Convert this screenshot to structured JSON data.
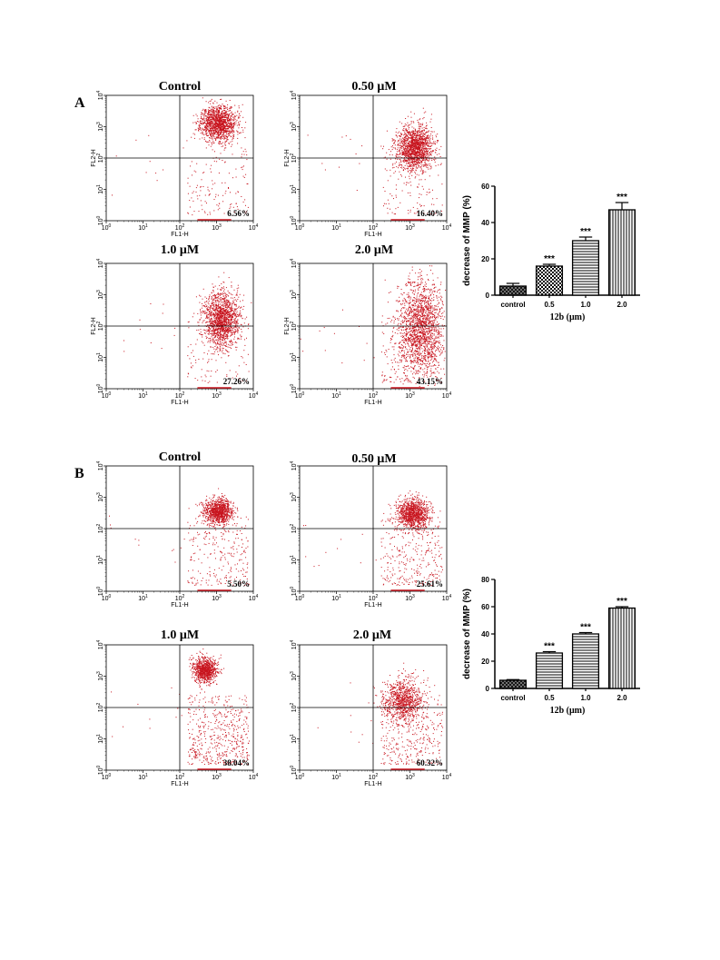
{
  "panels": [
    {
      "label": "A",
      "flow_plots": [
        {
          "title": "Control",
          "percent": "6.56%",
          "dist": "tight-top"
        },
        {
          "title": "0.50 μM",
          "percent": "16.40%",
          "dist": "tight-mid"
        },
        {
          "title": "1.0 μM",
          "percent": "27.26%",
          "dist": "tight-low"
        },
        {
          "title": "2.0 μM",
          "percent": "43.15%",
          "dist": "spread"
        }
      ],
      "flow_axis": {
        "ylabel": "FL2-H",
        "xlabel": "FL1-H"
      },
      "chart_data": {
        "type": "bar",
        "categories": [
          "control",
          "0.5",
          "1.0",
          "2.0"
        ],
        "values": [
          5,
          16,
          30,
          47
        ],
        "errors": [
          1.5,
          1,
          2,
          4
        ],
        "significance": [
          "",
          "***",
          "***",
          "***"
        ],
        "xlabel": "12b (μm)",
        "ylabel": "decrease of MMP (%)",
        "ylim": [
          0,
          60
        ],
        "yticks": [
          "0",
          "20",
          "40",
          "60"
        ],
        "patterns": [
          "crosshatch",
          "checker",
          "horizontal",
          "vertical"
        ]
      }
    },
    {
      "label": "B",
      "flow_plots": [
        {
          "title": "Control",
          "percent": "5.50%",
          "dist": "b-top"
        },
        {
          "title": "0.50 μM",
          "percent": "25.61%",
          "dist": "b-top2"
        },
        {
          "title": "1.0 μM",
          "percent": "38.04%",
          "dist": "b-upper"
        },
        {
          "title": "2.0 μM",
          "percent": "60.32%",
          "dist": "b-mid"
        }
      ],
      "flow_axis": {
        "ylabel": "",
        "xlabel": "FL1-H"
      },
      "chart_data": {
        "type": "bar",
        "categories": [
          "control",
          "0.5",
          "1.0",
          "2.0"
        ],
        "values": [
          6,
          26,
          40,
          59
        ],
        "errors": [
          0.5,
          1,
          1,
          1
        ],
        "significance": [
          "",
          "***",
          "***",
          "***"
        ],
        "xlabel": "12b (μm)",
        "ylabel": "decrease of MMP (%)",
        "ylim": [
          0,
          80
        ],
        "yticks": [
          "0",
          "20",
          "40",
          "60",
          "80"
        ],
        "patterns": [
          "crosshatch",
          "horizontal",
          "horizontal",
          "vertical"
        ]
      }
    }
  ],
  "colors": {
    "dots": "#c8141e",
    "axis": "#000000"
  }
}
